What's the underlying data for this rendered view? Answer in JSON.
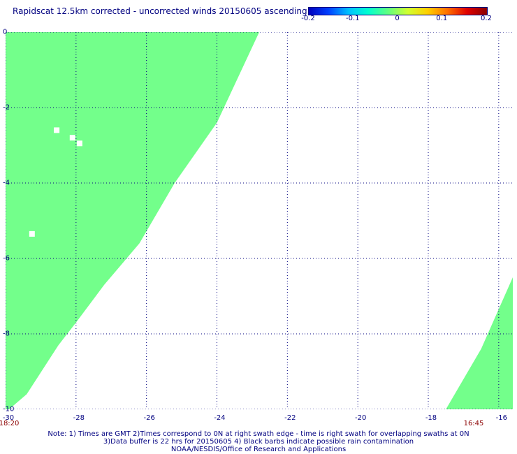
{
  "title": "Rapidscat 12.5km corrected - uncorrected winds 20150605 ascending",
  "colorbar": {
    "ticks": [
      {
        "label": "-0.2",
        "value": -0.2
      },
      {
        "label": "-0.1",
        "value": -0.1
      },
      {
        "label": "0",
        "value": 0
      },
      {
        "label": "0.1",
        "value": 0.1
      },
      {
        "label": "0.2",
        "value": 0.2
      }
    ],
    "colors": [
      "#0000bf",
      "#0040ff",
      "#00c0ff",
      "#00ffd0",
      "#60ff80",
      "#d0ff30",
      "#ffd000",
      "#ff7000",
      "#e00000",
      "#8b0000"
    ]
  },
  "chart_data": {
    "type": "heatmap",
    "xlim": [
      -30,
      -15.6
    ],
    "ylim": [
      -10,
      0
    ],
    "x_ticks": [
      {
        "label": "-30",
        "value": -30
      },
      {
        "label": "-28",
        "value": -28
      },
      {
        "label": "-26",
        "value": -26
      },
      {
        "label": "-24",
        "value": -24
      },
      {
        "label": "-22",
        "value": -22
      },
      {
        "label": "-20",
        "value": -20
      },
      {
        "label": "-18",
        "value": -18
      },
      {
        "label": "-16",
        "value": -16
      }
    ],
    "y_ticks": [
      {
        "label": "0",
        "value": 0
      },
      {
        "label": "-2",
        "value": -2
      },
      {
        "label": "-4",
        "value": -4
      },
      {
        "label": "-6",
        "value": -6
      },
      {
        "label": "-8",
        "value": -8
      },
      {
        "label": "-10",
        "value": -10
      }
    ],
    "grid": true,
    "fill_color": "#73ff8b",
    "swath_left": {
      "time": "18:20",
      "edge": [
        [
          -22.8,
          0
        ],
        [
          -24.0,
          -2.4
        ],
        [
          -25.2,
          -4.0
        ],
        [
          -26.2,
          -5.6
        ],
        [
          -27.2,
          -6.7
        ],
        [
          -28.0,
          -7.7
        ],
        [
          -28.5,
          -8.3
        ],
        [
          -29.4,
          -9.6
        ],
        [
          -29.9,
          -10
        ]
      ]
    },
    "swath_right": {
      "time": "16:45",
      "edge": [
        [
          -15.6,
          -6.5
        ],
        [
          -16.5,
          -8.4
        ],
        [
          -17.5,
          -10
        ]
      ]
    },
    "gaps": [
      [
        -28.55,
        -2.6
      ],
      [
        -28.1,
        -2.8
      ],
      [
        -27.9,
        -2.95
      ],
      [
        -29.25,
        -5.35
      ]
    ]
  },
  "note": {
    "line1": "Note: 1) Times are GMT 2)Times correspond to 0N at right swath edge - time is right swath for overlapping swaths at 0N",
    "line2": "3)Data buffer is 22 hrs for 20150605 4) Black barbs indicate possible rain contamination",
    "line3": "NOAA/NESDIS/Office of Research and Applications"
  }
}
